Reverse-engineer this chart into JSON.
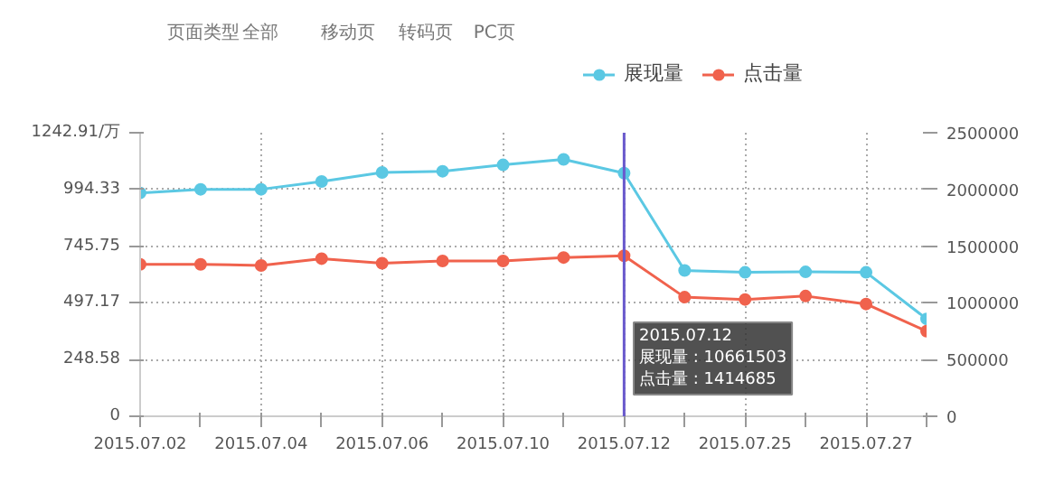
{
  "chart_data": {
    "type": "line",
    "categories": [
      "2015.07.02",
      null,
      "2015.07.04",
      null,
      "2015.07.06",
      null,
      "2015.07.10",
      null,
      "2015.07.12",
      null,
      "2015.07.25",
      null,
      "2015.07.27",
      null
    ],
    "series": [
      {
        "name": "展现量",
        "color": "#5bc8e3",
        "values": [
          979,
          995,
          995,
          1029,
          1069,
          1074,
          1102,
          1126,
          1066,
          639,
          631,
          633,
          631,
          427
        ]
      },
      {
        "name": "点击量",
        "color": "#f0624d",
        "axis": "y2",
        "values": [
          1340000,
          1340000,
          1330000,
          1390000,
          1350000,
          1370000,
          1370000,
          1400000,
          1414685,
          1050000,
          1030000,
          1060000,
          990000,
          750000
        ]
      }
    ],
    "ylim": [
      0,
      1242.91
    ],
    "yticks": [
      0,
      {
        "value": 248.58,
        "label": "248.58"
      },
      {
        "value": 497.17,
        "label": "497.17"
      },
      {
        "value": 745.75,
        "label": "745.75"
      },
      {
        "value": 994.33,
        "label": "994.33"
      },
      {
        "value": 1242.91,
        "label": "1242.91/万"
      }
    ],
    "y2lim": [
      0,
      2500000
    ],
    "y2ticks": [
      0,
      500000,
      1000000,
      1500000,
      2000000,
      2500000
    ],
    "ref_lines": [
      {
        "axis": "x",
        "value": "2015.07.12",
        "color": "#6a5acd"
      }
    ],
    "annotations": [
      "页面类型",
      "全部",
      "移动页",
      "转码页",
      "PC页",
      "2015.07.12\n展现量 : 10661503\n点击量 : 1414685"
    ],
    "grid": true,
    "legend": "top",
    "marker": "circle",
    "line_style": "solid"
  }
}
